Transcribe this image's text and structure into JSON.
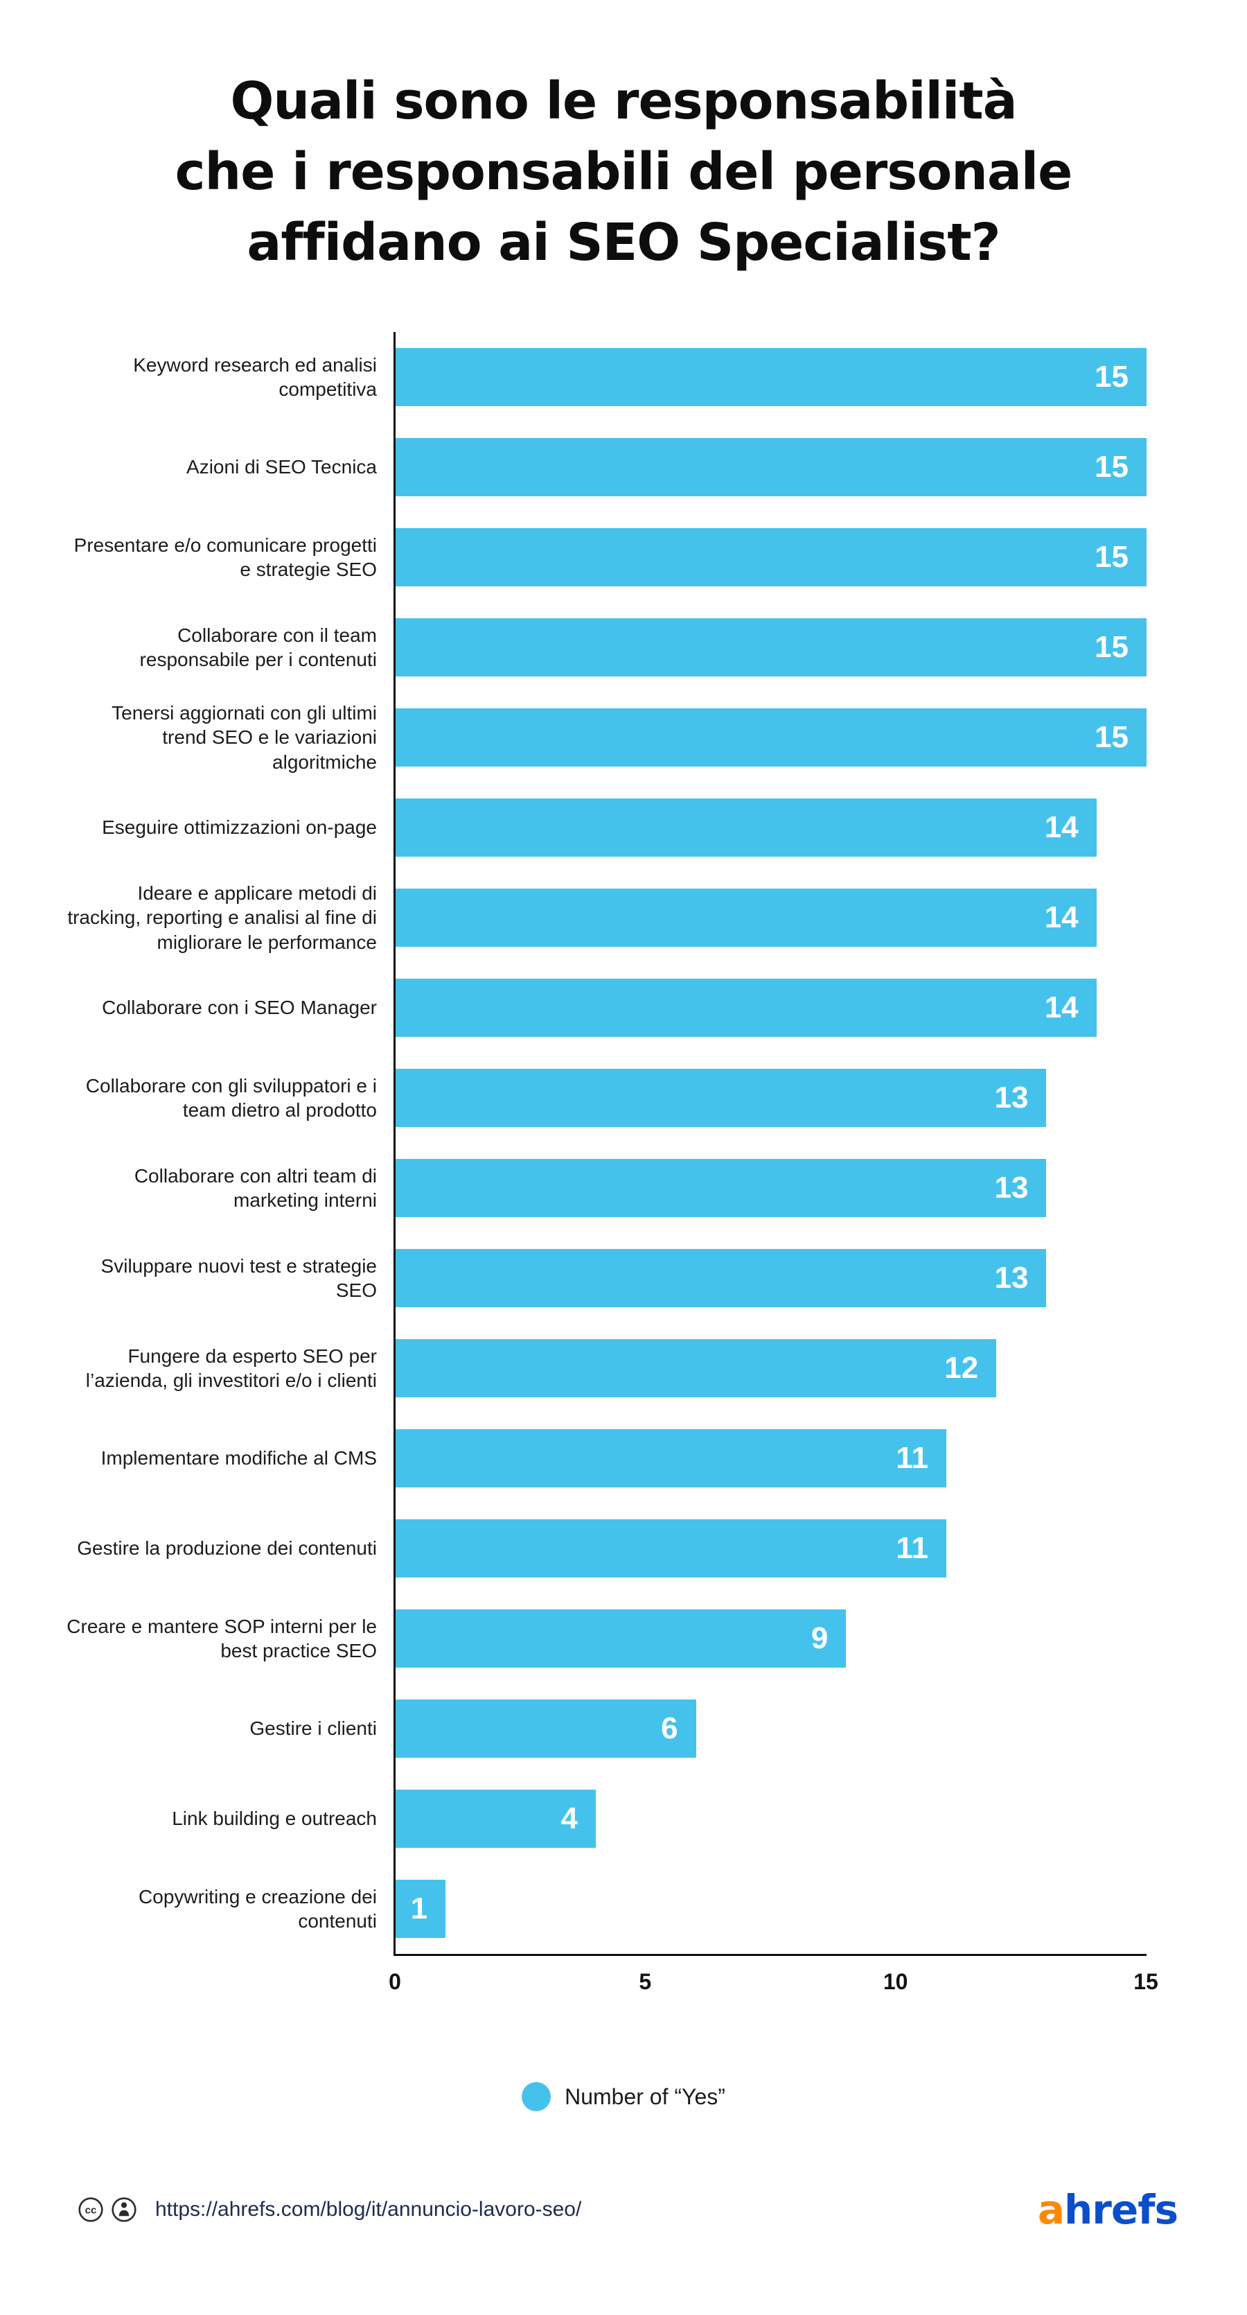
{
  "title": {
    "line1": "Quali sono le responsabilità",
    "line2": "che i responsabili del personale",
    "line3": "affidano ai SEO Specialist?"
  },
  "chart_data": {
    "type": "bar",
    "orientation": "horizontal",
    "title": "Quali sono le responsabilità che i responsabili del personale affidano ai SEO Specialist?",
    "xlabel": "",
    "ylabel": "",
    "grid": false,
    "xlim": [
      0,
      15
    ],
    "x_ticks": [
      0,
      5,
      10,
      15
    ],
    "bar_color": "#45C2EC",
    "value_label_color": "#ffffff",
    "categories": [
      "Keyword research ed analisi competitiva",
      "Azioni di SEO Tecnica",
      "Presentare e/o comunicare progetti e strategie SEO",
      "Collaborare con il team responsabile per i contenuti",
      "Tenersi aggiornati con gli ultimi trend SEO e le variazioni algoritmiche",
      "Eseguire ottimizzazioni on-page",
      "Ideare e applicare metodi di tracking, reporting e analisi al fine di migliorare le performance",
      "Collaborare con i SEO Manager",
      "Collaborare con gli sviluppatori e i team dietro al prodotto",
      "Collaborare con altri team di marketing interni",
      "Sviluppare nuovi test e strategie SEO",
      "Fungere da esperto SEO per l’azienda, gli investitori e/o i clienti",
      "Implementare modifiche al CMS",
      "Gestire la produzione dei contenuti",
      "Creare e mantere SOP interni per le best practice SEO",
      "Gestire i clienti",
      "Link building e outreach",
      "Copywriting e creazione dei contenuti"
    ],
    "values": [
      15,
      15,
      15,
      15,
      15,
      14,
      14,
      14,
      13,
      13,
      13,
      12,
      11,
      11,
      9,
      6,
      4,
      1
    ],
    "legend": {
      "label": "Number of “Yes”",
      "marker_color": "#45C2EC",
      "position": "bottom"
    }
  },
  "footer": {
    "license": "cc-by",
    "url": "https://ahrefs.com/blog/it/annuncio-lavoro-seo/",
    "logo": {
      "prefix": "a",
      "suffix": "hrefs",
      "prefix_color": "#FF8800",
      "suffix_color": "#0A4ECB"
    }
  }
}
